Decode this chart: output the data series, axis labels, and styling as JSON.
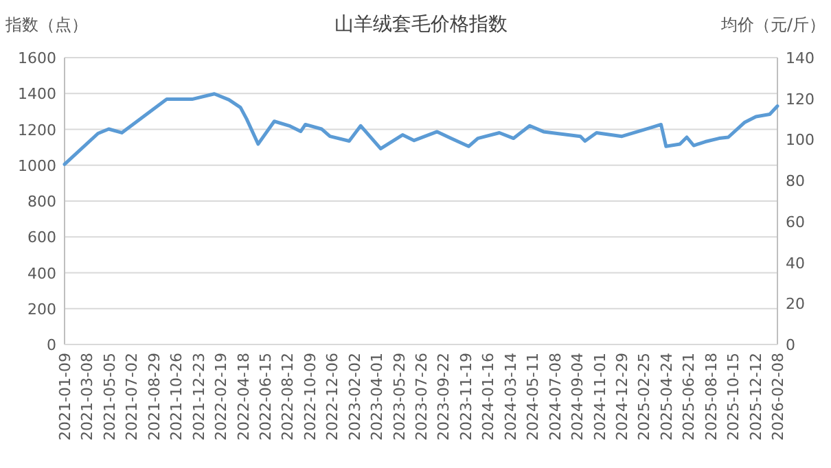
{
  "chart_data": {
    "type": "line",
    "title": "山羊绒套毛价格指数",
    "ylabel": "指数（点）",
    "y2label": "均价（元/斤）",
    "x": [
      "2021-01-09",
      "2021-04-06",
      "2021-05-04",
      "2021-06-07",
      "2021-10-02",
      "2021-12-07",
      "2022-02-03",
      "2022-03-13",
      "2022-04-12",
      "2022-04-28",
      "2022-05-28",
      "2022-07-09",
      "2022-08-17",
      "2022-09-16",
      "2022-09-28",
      "2022-11-09",
      "2022-12-01",
      "2023-01-20",
      "2023-02-19",
      "2023-04-12",
      "2023-06-08",
      "2023-07-08",
      "2023-09-06",
      "2023-10-12",
      "2023-11-27",
      "2023-12-21",
      "2024-02-15",
      "2024-03-23",
      "2024-05-04",
      "2024-06-09",
      "2024-09-13",
      "2024-09-25",
      "2024-10-25",
      "2024-12-30",
      "2025-03-12",
      "2025-04-11",
      "2025-04-24",
      "2025-05-30",
      "2025-06-17",
      "2025-07-05",
      "2025-08-04",
      "2025-09-09",
      "2025-10-03",
      "2025-11-14",
      "2025-12-14",
      "2026-01-19",
      "2026-02-08"
    ],
    "series": [
      {
        "color": "#5b9bd5",
        "values": [
          1005,
          1177,
          1202,
          1181,
          1368,
          1368,
          1398,
          1365,
          1322,
          1258,
          1118,
          1245,
          1220,
          1189,
          1227,
          1202,
          1161,
          1135,
          1220,
          1092,
          1169,
          1138,
          1187,
          1150,
          1105,
          1150,
          1181,
          1150,
          1220,
          1187,
          1161,
          1135,
          1181,
          1161,
          1207,
          1227,
          1105,
          1118,
          1156,
          1110,
          1131,
          1150,
          1156,
          1238,
          1271,
          1284,
          1330
        ]
      }
    ],
    "xlim": [
      "2021-01-09",
      "2026-02-08"
    ],
    "xticks": [
      "2021-01-09",
      "2021-03-08",
      "2021-05-05",
      "2021-07-02",
      "2021-08-29",
      "2021-10-26",
      "2021-12-23",
      "2022-02-19",
      "2022-04-18",
      "2022-06-15",
      "2022-08-12",
      "2022-10-09",
      "2022-12-06",
      "2023-02-02",
      "2023-04-01",
      "2023-05-29",
      "2023-07-26",
      "2023-09-22",
      "2023-11-19",
      "2024-01-16",
      "2024-03-14",
      "2024-05-11",
      "2024-07-08",
      "2024-09-04",
      "2024-11-01",
      "2024-12-29",
      "2025-02-25",
      "2025-04-24",
      "2025-06-21",
      "2025-08-18",
      "2025-10-15",
      "2025-12-12",
      "2026-02-08"
    ],
    "ylim": [
      0,
      1600
    ],
    "yticks": [
      0,
      200,
      400,
      600,
      800,
      1000,
      1200,
      1400,
      1600
    ],
    "y2lim": [
      0,
      140
    ],
    "y2ticks": [
      0,
      20,
      40,
      60,
      80,
      100,
      120,
      140
    ],
    "grid": "y",
    "marker": "none",
    "line_style": "solid"
  }
}
